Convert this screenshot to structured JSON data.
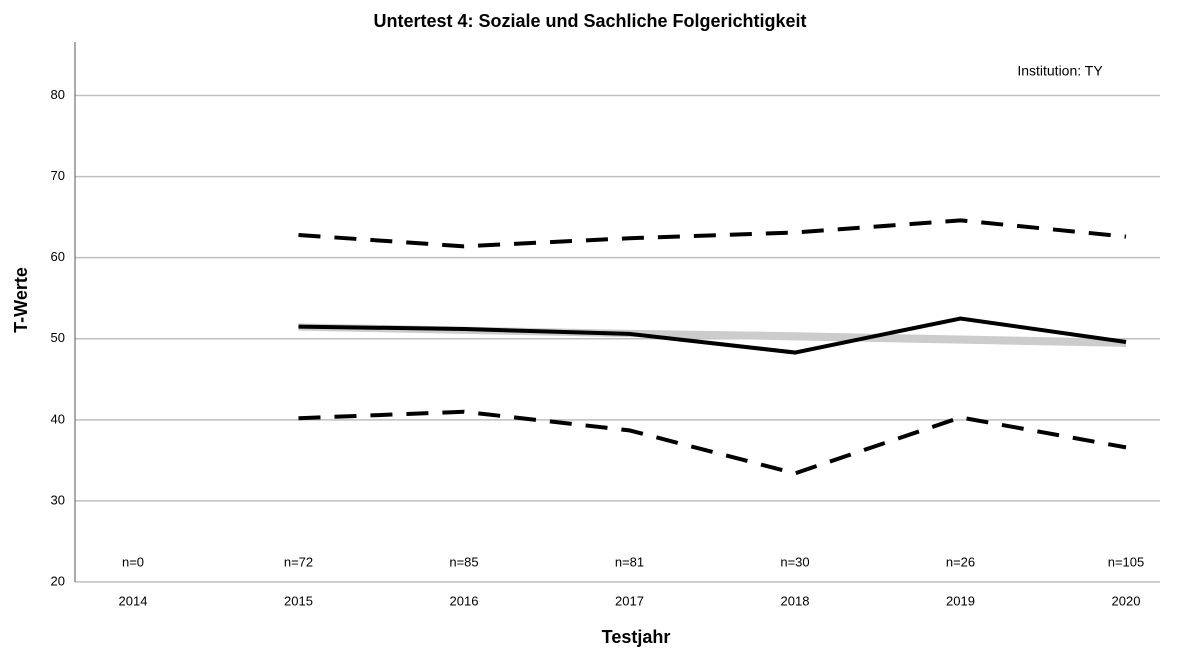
{
  "chart_data": {
    "type": "line",
    "title": "Untertest 4: Soziale und Sachliche Folgerichtigkeit",
    "annotation": "Institution: TY",
    "x_label": "Testjahr",
    "y_label": "T-Werte",
    "categories": [
      "2014",
      "2015",
      "2016",
      "2017",
      "2018",
      "2019",
      "2020"
    ],
    "n_labels": [
      "n=0",
      "n=72",
      "n=85",
      "n=81",
      "n=30",
      "n=26",
      "n=105"
    ],
    "band": {
      "color": "#cccccc",
      "upper": [
        null,
        51.9,
        51.5,
        51.1,
        50.8,
        50.4,
        50.0
      ],
      "lower": [
        null,
        51.0,
        50.6,
        50.2,
        49.8,
        49.4,
        49.0
      ]
    },
    "series": [
      {
        "color": "#000000",
        "dashed": false,
        "values": [
          null,
          51.5,
          51.2,
          50.6,
          48.3,
          52.5,
          49.6
        ]
      },
      {
        "color": "#000000",
        "dashed": true,
        "values": [
          null,
          62.8,
          61.4,
          62.4,
          63.1,
          64.6,
          62.6
        ]
      },
      {
        "color": "#000000",
        "dashed": true,
        "values": [
          null,
          40.2,
          41.0,
          38.7,
          33.4,
          40.3,
          36.6
        ]
      }
    ],
    "ylim": [
      20,
      86.6
    ],
    "yticks": [
      20,
      30,
      40,
      50,
      60,
      70,
      80
    ],
    "grid": true
  }
}
